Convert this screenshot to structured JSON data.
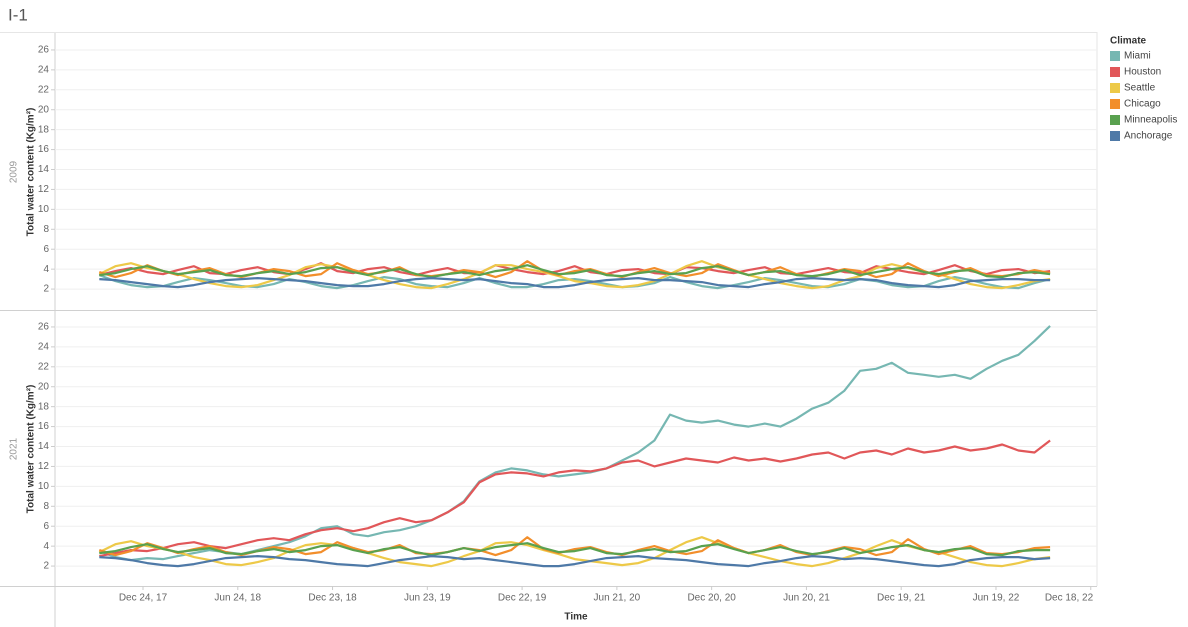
{
  "title": "I-1",
  "legend_title": "Climate",
  "x_label": "Time",
  "chart_data": [
    {
      "type": "line",
      "facet": "2009",
      "y_label": "Total water content (Kg/m²)",
      "xlim": [
        "2017-07-08",
        "2022-12-30"
      ],
      "ylim": [
        0,
        27.5
      ],
      "yticks": [
        2,
        4,
        6,
        8,
        10,
        12,
        14,
        16,
        18,
        20,
        22,
        24,
        26
      ],
      "grid": true,
      "x": [
        "2017-10-01",
        "2017-11-01",
        "2017-12-01",
        "2018-01-01",
        "2018-02-01",
        "2018-03-01",
        "2018-04-01",
        "2018-05-01",
        "2018-06-01",
        "2018-07-01",
        "2018-08-01",
        "2018-09-01",
        "2018-10-01",
        "2018-11-01",
        "2018-12-01",
        "2019-01-01",
        "2019-02-01",
        "2019-03-01",
        "2019-04-01",
        "2019-05-01",
        "2019-06-01",
        "2019-07-01",
        "2019-08-01",
        "2019-09-01",
        "2019-10-01",
        "2019-11-01",
        "2019-12-01",
        "2020-01-01",
        "2020-02-01",
        "2020-03-01",
        "2020-04-01",
        "2020-05-01",
        "2020-06-01",
        "2020-07-01",
        "2020-08-01",
        "2020-09-01",
        "2020-10-01",
        "2020-11-01",
        "2020-12-01",
        "2021-01-01",
        "2021-02-01",
        "2021-03-01",
        "2021-04-01",
        "2021-05-01",
        "2021-06-01",
        "2021-07-01",
        "2021-08-01",
        "2021-09-01",
        "2021-10-01",
        "2021-11-01",
        "2021-12-01",
        "2022-01-01",
        "2022-02-01",
        "2022-03-01",
        "2022-04-01",
        "2022-05-01",
        "2022-06-01",
        "2022-07-01",
        "2022-08-01",
        "2022-09-01",
        "2022-10-01"
      ],
      "series": [
        {
          "name": "Miami",
          "color": "#76b7b2",
          "values": [
            3.4,
            2.8,
            2.4,
            2.2,
            2.3,
            2.7,
            3.1,
            2.9,
            2.6,
            2.3,
            2.2,
            2.5,
            3.0,
            2.7,
            2.3,
            2.1,
            2.4,
            2.8,
            3.2,
            3.0,
            2.5,
            2.3,
            2.2,
            2.6,
            3.1,
            2.6,
            2.2,
            2.2,
            2.5,
            2.9,
            3.0,
            2.8,
            2.5,
            2.2,
            2.3,
            2.6,
            3.2,
            2.7,
            2.3,
            2.1,
            2.4,
            2.7,
            3.1,
            2.9,
            2.6,
            2.3,
            2.2,
            2.5,
            3.0,
            2.8,
            2.4,
            2.2,
            2.3,
            2.8,
            3.2,
            2.9,
            2.5,
            2.2,
            2.1,
            2.6,
            3.0
          ]
        },
        {
          "name": "Houston",
          "color": "#e15759",
          "values": [
            3.4,
            3.8,
            4.1,
            3.7,
            3.5,
            3.9,
            4.3,
            3.6,
            3.5,
            3.9,
            4.2,
            3.7,
            3.5,
            4.0,
            4.6,
            3.8,
            3.6,
            4.0,
            4.2,
            3.7,
            3.4,
            3.8,
            4.1,
            3.6,
            3.6,
            4.4,
            4.0,
            3.7,
            3.5,
            3.8,
            4.3,
            3.7,
            3.5,
            3.9,
            4.0,
            3.6,
            3.5,
            4.2,
            4.1,
            3.8,
            3.6,
            3.9,
            4.2,
            3.6,
            3.5,
            3.8,
            4.1,
            3.7,
            3.6,
            4.3,
            4.0,
            3.7,
            3.5,
            3.9,
            4.4,
            3.8,
            3.5,
            3.9,
            4.0,
            3.6,
            3.8
          ]
        },
        {
          "name": "Seattle",
          "color": "#edc948",
          "values": [
            3.5,
            4.3,
            4.6,
            4.1,
            3.8,
            3.5,
            3.0,
            2.6,
            2.3,
            2.2,
            2.4,
            2.9,
            3.4,
            4.2,
            4.5,
            4.2,
            3.9,
            3.4,
            2.9,
            2.5,
            2.2,
            2.1,
            2.5,
            3.0,
            3.6,
            4.4,
            4.4,
            4.0,
            3.7,
            3.3,
            2.8,
            2.6,
            2.3,
            2.2,
            2.4,
            2.8,
            3.5,
            4.3,
            4.8,
            4.2,
            3.8,
            3.4,
            3.0,
            2.6,
            2.3,
            2.1,
            2.3,
            2.9,
            3.3,
            4.1,
            4.5,
            4.1,
            3.7,
            3.5,
            3.0,
            2.5,
            2.2,
            2.1,
            2.4,
            2.8,
            3.0
          ]
        },
        {
          "name": "Chicago",
          "color": "#f28e2b",
          "values": [
            3.7,
            3.2,
            3.6,
            4.4,
            3.8,
            3.4,
            3.8,
            4.1,
            3.5,
            3.2,
            3.6,
            4.0,
            3.8,
            3.3,
            3.5,
            4.6,
            3.9,
            3.5,
            3.7,
            4.2,
            3.4,
            3.3,
            3.5,
            3.9,
            3.7,
            3.2,
            3.7,
            4.8,
            3.8,
            3.4,
            3.8,
            4.0,
            3.5,
            3.2,
            3.7,
            4.1,
            3.6,
            3.3,
            3.6,
            4.5,
            3.9,
            3.4,
            3.7,
            4.2,
            3.5,
            3.2,
            3.6,
            4.0,
            3.8,
            3.2,
            3.5,
            4.6,
            3.8,
            3.3,
            3.7,
            4.1,
            3.4,
            3.3,
            3.5,
            3.9,
            3.6
          ]
        },
        {
          "name": "Minneapolis",
          "color": "#59a14f",
          "values": [
            3.4,
            3.6,
            4.0,
            4.3,
            3.8,
            3.5,
            3.7,
            3.9,
            3.4,
            3.3,
            3.6,
            3.8,
            3.5,
            3.7,
            4.1,
            4.2,
            3.7,
            3.4,
            3.8,
            4.0,
            3.5,
            3.2,
            3.5,
            3.7,
            3.4,
            3.8,
            4.0,
            4.4,
            3.9,
            3.5,
            3.6,
            3.9,
            3.4,
            3.3,
            3.6,
            3.8,
            3.5,
            3.6,
            4.1,
            4.3,
            3.8,
            3.4,
            3.7,
            3.8,
            3.4,
            3.3,
            3.5,
            3.9,
            3.4,
            3.7,
            4.0,
            4.2,
            3.7,
            3.5,
            3.8,
            3.9,
            3.3,
            3.2,
            3.6,
            3.7,
            3.5
          ]
        },
        {
          "name": "Anchorage",
          "color": "#4e79a7",
          "values": [
            3.0,
            2.9,
            2.7,
            2.5,
            2.3,
            2.2,
            2.4,
            2.7,
            2.9,
            3.0,
            3.1,
            3.0,
            2.9,
            2.8,
            2.6,
            2.4,
            2.3,
            2.3,
            2.5,
            2.8,
            3.0,
            3.1,
            3.0,
            2.9,
            3.0,
            2.8,
            2.6,
            2.5,
            2.2,
            2.2,
            2.4,
            2.7,
            2.9,
            3.0,
            3.1,
            2.9,
            2.9,
            2.8,
            2.7,
            2.4,
            2.3,
            2.2,
            2.5,
            2.7,
            3.0,
            3.1,
            3.0,
            2.9,
            3.0,
            2.9,
            2.6,
            2.4,
            2.3,
            2.2,
            2.4,
            2.8,
            2.9,
            3.0,
            3.0,
            2.9,
            2.9
          ]
        }
      ]
    },
    {
      "type": "line",
      "facet": "2021",
      "y_label": "Total water content (Kg/m²)",
      "xlim": [
        "2017-07-08",
        "2022-12-30"
      ],
      "ylim": [
        0,
        27.5
      ],
      "yticks": [
        2,
        4,
        6,
        8,
        10,
        12,
        14,
        16,
        18,
        20,
        22,
        24,
        26
      ],
      "grid": true,
      "xticks": [
        {
          "value": "2017-12-24",
          "label": "Dec 24, 17"
        },
        {
          "value": "2018-06-24",
          "label": "Jun 24, 18"
        },
        {
          "value": "2018-12-23",
          "label": "Dec 23, 18"
        },
        {
          "value": "2019-06-23",
          "label": "Jun 23, 19"
        },
        {
          "value": "2019-12-22",
          "label": "Dec 22, 19"
        },
        {
          "value": "2020-06-21",
          "label": "Jun 21, 20"
        },
        {
          "value": "2020-12-20",
          "label": "Dec 20, 20"
        },
        {
          "value": "2021-06-20",
          "label": "Jun 20, 21"
        },
        {
          "value": "2021-12-19",
          "label": "Dec 19, 21"
        },
        {
          "value": "2022-06-19",
          "label": "Jun 19, 22"
        },
        {
          "value": "2022-12-18",
          "label": "Dec 18, 22"
        }
      ],
      "x": [
        "2017-10-01",
        "2017-11-01",
        "2017-12-01",
        "2018-01-01",
        "2018-02-01",
        "2018-03-01",
        "2018-04-01",
        "2018-05-01",
        "2018-06-01",
        "2018-07-01",
        "2018-08-01",
        "2018-09-01",
        "2018-10-01",
        "2018-11-01",
        "2018-12-01",
        "2019-01-01",
        "2019-02-01",
        "2019-03-01",
        "2019-04-01",
        "2019-05-01",
        "2019-06-01",
        "2019-07-01",
        "2019-08-01",
        "2019-09-01",
        "2019-10-01",
        "2019-11-01",
        "2019-12-01",
        "2020-01-01",
        "2020-02-01",
        "2020-03-01",
        "2020-04-01",
        "2020-05-01",
        "2020-06-01",
        "2020-07-01",
        "2020-08-01",
        "2020-09-01",
        "2020-10-01",
        "2020-11-01",
        "2020-12-01",
        "2021-01-01",
        "2021-02-01",
        "2021-03-01",
        "2021-04-01",
        "2021-05-01",
        "2021-06-01",
        "2021-07-01",
        "2021-08-01",
        "2021-09-01",
        "2021-10-01",
        "2021-11-01",
        "2021-12-01",
        "2022-01-01",
        "2022-02-01",
        "2022-03-01",
        "2022-04-01",
        "2022-05-01",
        "2022-06-01",
        "2022-07-01",
        "2022-08-01",
        "2022-09-01",
        "2022-10-01"
      ],
      "series": [
        {
          "name": "Miami",
          "color": "#76b7b2",
          "values": [
            3.5,
            2.9,
            2.6,
            2.8,
            2.7,
            3.0,
            3.3,
            3.6,
            3.4,
            3.2,
            3.6,
            4.0,
            4.4,
            5.0,
            5.8,
            6.0,
            5.2,
            5.0,
            5.4,
            5.6,
            6.0,
            6.6,
            7.4,
            8.5,
            10.5,
            11.4,
            11.8,
            11.6,
            11.2,
            11.0,
            11.2,
            11.4,
            11.8,
            12.6,
            13.4,
            14.6,
            17.2,
            16.6,
            16.4,
            16.6,
            16.2,
            16.0,
            16.3,
            16.0,
            16.8,
            17.8,
            18.4,
            19.6,
            21.6,
            21.8,
            22.4,
            21.4,
            21.2,
            21.0,
            21.2,
            20.8,
            21.8,
            22.6,
            23.2,
            24.6,
            26.1
          ]
        },
        {
          "name": "Houston",
          "color": "#e15759",
          "values": [
            3.0,
            3.3,
            3.6,
            3.5,
            3.8,
            4.2,
            4.4,
            4.0,
            3.8,
            4.2,
            4.6,
            4.8,
            4.6,
            5.2,
            5.6,
            5.8,
            5.5,
            5.8,
            6.4,
            6.8,
            6.4,
            6.6,
            7.4,
            8.4,
            10.4,
            11.2,
            11.4,
            11.3,
            11.0,
            11.4,
            11.6,
            11.5,
            11.8,
            12.4,
            12.6,
            12.0,
            12.4,
            12.8,
            12.6,
            12.4,
            12.9,
            12.6,
            12.8,
            12.5,
            12.8,
            13.2,
            13.4,
            12.8,
            13.4,
            13.6,
            13.2,
            13.8,
            13.4,
            13.6,
            14.0,
            13.6,
            13.8,
            14.2,
            13.6,
            13.4,
            14.6
          ]
        },
        {
          "name": "Seattle",
          "color": "#edc948",
          "values": [
            3.4,
            4.2,
            4.5,
            4.0,
            3.7,
            3.4,
            2.9,
            2.6,
            2.2,
            2.1,
            2.4,
            2.8,
            3.5,
            4.1,
            4.3,
            4.1,
            3.8,
            3.3,
            2.8,
            2.4,
            2.2,
            2.0,
            2.4,
            3.0,
            3.5,
            4.3,
            4.4,
            4.1,
            3.6,
            3.2,
            2.7,
            2.5,
            2.3,
            2.1,
            2.3,
            2.8,
            3.6,
            4.4,
            4.9,
            4.3,
            3.8,
            3.3,
            2.9,
            2.5,
            2.2,
            2.0,
            2.3,
            2.8,
            3.3,
            4.0,
            4.6,
            4.0,
            3.6,
            3.4,
            2.9,
            2.4,
            2.1,
            2.0,
            2.3,
            2.7,
            2.9
          ]
        },
        {
          "name": "Chicago",
          "color": "#f28e2b",
          "values": [
            3.6,
            3.1,
            3.5,
            4.3,
            3.8,
            3.3,
            3.7,
            4.0,
            3.4,
            3.1,
            3.5,
            3.9,
            3.7,
            3.2,
            3.4,
            4.4,
            3.8,
            3.4,
            3.6,
            4.1,
            3.3,
            3.2,
            3.4,
            3.8,
            3.6,
            3.1,
            3.6,
            4.9,
            3.7,
            3.3,
            3.7,
            3.9,
            3.4,
            3.1,
            3.6,
            4.0,
            3.5,
            3.2,
            3.5,
            4.6,
            3.8,
            3.3,
            3.6,
            4.1,
            3.4,
            3.1,
            3.5,
            3.9,
            3.7,
            3.1,
            3.4,
            4.7,
            3.7,
            3.2,
            3.6,
            4.0,
            3.3,
            3.2,
            3.4,
            3.8,
            3.9
          ]
        },
        {
          "name": "Minneapolis",
          "color": "#59a14f",
          "values": [
            3.3,
            3.5,
            3.9,
            4.2,
            3.7,
            3.4,
            3.6,
            3.8,
            3.3,
            3.2,
            3.5,
            3.7,
            3.4,
            3.6,
            4.0,
            4.1,
            3.6,
            3.3,
            3.7,
            3.9,
            3.4,
            3.1,
            3.4,
            3.8,
            3.5,
            3.9,
            4.1,
            4.3,
            3.8,
            3.4,
            3.5,
            3.8,
            3.3,
            3.2,
            3.5,
            3.7,
            3.4,
            3.5,
            4.0,
            4.2,
            3.7,
            3.3,
            3.6,
            3.9,
            3.5,
            3.2,
            3.4,
            3.8,
            3.3,
            3.6,
            3.9,
            4.1,
            3.6,
            3.4,
            3.7,
            3.8,
            3.2,
            3.1,
            3.5,
            3.6,
            3.6
          ]
        },
        {
          "name": "Anchorage",
          "color": "#4e79a7",
          "values": [
            2.9,
            2.8,
            2.6,
            2.3,
            2.1,
            2.0,
            2.2,
            2.5,
            2.8,
            2.9,
            3.0,
            2.9,
            2.7,
            2.6,
            2.4,
            2.2,
            2.1,
            2.0,
            2.3,
            2.6,
            2.8,
            3.0,
            2.9,
            2.7,
            2.8,
            2.6,
            2.4,
            2.2,
            2.0,
            2.0,
            2.2,
            2.5,
            2.8,
            2.9,
            3.0,
            2.8,
            2.7,
            2.6,
            2.4,
            2.2,
            2.1,
            2.0,
            2.3,
            2.5,
            2.8,
            3.0,
            2.9,
            2.7,
            2.8,
            2.7,
            2.5,
            2.3,
            2.1,
            2.0,
            2.2,
            2.6,
            2.8,
            2.9,
            2.9,
            2.7,
            2.8
          ]
        }
      ]
    }
  ]
}
